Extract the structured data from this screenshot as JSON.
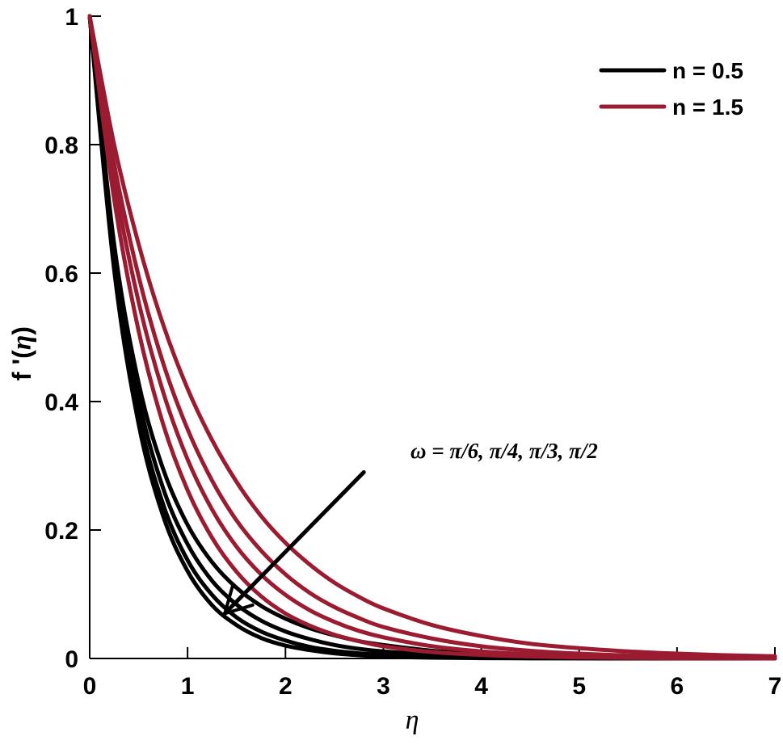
{
  "chart_data": {
    "type": "line",
    "title": "",
    "xlabel": "η",
    "ylabel": "f '(η)",
    "ylabel_main": "f '(",
    "ylabel_sym": "η",
    "ylabel_close": ")",
    "xlim": [
      0,
      7
    ],
    "ylim": [
      0,
      1
    ],
    "xticks": [
      0,
      1,
      2,
      3,
      4,
      5,
      6,
      7
    ],
    "yticks": [
      {
        "value": 0,
        "label": "0"
      },
      {
        "value": 0.2,
        "label": "0.2"
      },
      {
        "value": 0.4,
        "label": "0.4"
      },
      {
        "value": 0.6,
        "label": "0.6"
      },
      {
        "value": 0.8,
        "label": "0.8"
      },
      {
        "value": 1,
        "label": "1"
      }
    ],
    "grid": false,
    "legend_position": "top-right",
    "legend": [
      {
        "label": "n = 0.5",
        "color": "#000000"
      },
      {
        "label": "n = 1.5",
        "color": "#9b1b30"
      }
    ],
    "annotation": {
      "text": "ω = π/6, π/4, π/3, π/2",
      "arrow_from": [
        2.8,
        0.29
      ],
      "arrow_to": [
        1.38,
        0.07
      ]
    },
    "x": [
      0,
      0.25,
      0.5,
      0.75,
      1,
      1.25,
      1.5,
      1.75,
      2,
      2.25,
      2.5,
      2.75,
      3,
      3.5,
      4,
      4.5,
      5,
      5.5,
      6,
      6.5,
      7
    ],
    "series": [
      {
        "group": "n = 0.5",
        "omega": "π/6",
        "color": "#000000",
        "values": [
          1,
          0.645,
          0.429,
          0.295,
          0.208,
          0.15,
          0.11,
          0.082,
          0.062,
          0.047,
          0.036,
          0.027,
          0.021,
          0.012,
          0.007,
          0.004,
          0.0025,
          0.0015,
          0.001,
          0.0006,
          0.0004
        ]
      },
      {
        "group": "n = 0.5",
        "omega": "π/4",
        "color": "#000000",
        "values": [
          1,
          0.63,
          0.405,
          0.265,
          0.178,
          0.121,
          0.084,
          0.059,
          0.042,
          0.03,
          0.021,
          0.015,
          0.011,
          0.006,
          0.003,
          0.0017,
          0.0009,
          0.0005,
          0.0003,
          0.0002,
          0.0001
        ]
      },
      {
        "group": "n = 0.5",
        "omega": "π/3",
        "color": "#000000",
        "values": [
          1,
          0.615,
          0.38,
          0.24,
          0.153,
          0.099,
          0.064,
          0.042,
          0.028,
          0.018,
          0.012,
          0.008,
          0.0055,
          0.0025,
          0.0012,
          0.0006,
          0.0003,
          0.0001,
          0.0001,
          0,
          0
        ]
      },
      {
        "group": "n = 0.5",
        "omega": "π/2",
        "color": "#000000",
        "values": [
          1,
          0.605,
          0.365,
          0.222,
          0.136,
          0.083,
          0.052,
          0.032,
          0.02,
          0.013,
          0.008,
          0.005,
          0.003,
          0.0012,
          0.0005,
          0.0002,
          0.0001,
          0,
          0,
          0,
          0
        ]
      },
      {
        "group": "n = 1.5",
        "omega": "π/6",
        "color": "#9b1b30",
        "values": [
          1,
          0.8,
          0.645,
          0.52,
          0.42,
          0.34,
          0.275,
          0.222,
          0.18,
          0.146,
          0.118,
          0.096,
          0.078,
          0.052,
          0.035,
          0.023,
          0.016,
          0.011,
          0.0075,
          0.005,
          0.0035
        ]
      },
      {
        "group": "n = 1.5",
        "omega": "π/4",
        "color": "#9b1b30",
        "values": [
          1,
          0.77,
          0.595,
          0.46,
          0.357,
          0.277,
          0.215,
          0.168,
          0.131,
          0.102,
          0.08,
          0.063,
          0.049,
          0.031,
          0.019,
          0.012,
          0.0075,
          0.0047,
          0.003,
          0.0019,
          0.0012
        ]
      },
      {
        "group": "n = 1.5",
        "omega": "π/3",
        "color": "#9b1b30",
        "values": [
          1,
          0.745,
          0.555,
          0.415,
          0.31,
          0.232,
          0.174,
          0.131,
          0.099,
          0.075,
          0.057,
          0.043,
          0.033,
          0.019,
          0.011,
          0.0064,
          0.0037,
          0.0022,
          0.0013,
          0.0008,
          0.0005
        ]
      },
      {
        "group": "n = 1.5",
        "omega": "π/2",
        "color": "#9b1b30",
        "values": [
          1,
          0.715,
          0.51,
          0.365,
          0.262,
          0.188,
          0.135,
          0.097,
          0.07,
          0.051,
          0.037,
          0.027,
          0.019,
          0.01,
          0.0055,
          0.003,
          0.0016,
          0.0009,
          0.0005,
          0.0003,
          0.0002
        ]
      }
    ]
  }
}
